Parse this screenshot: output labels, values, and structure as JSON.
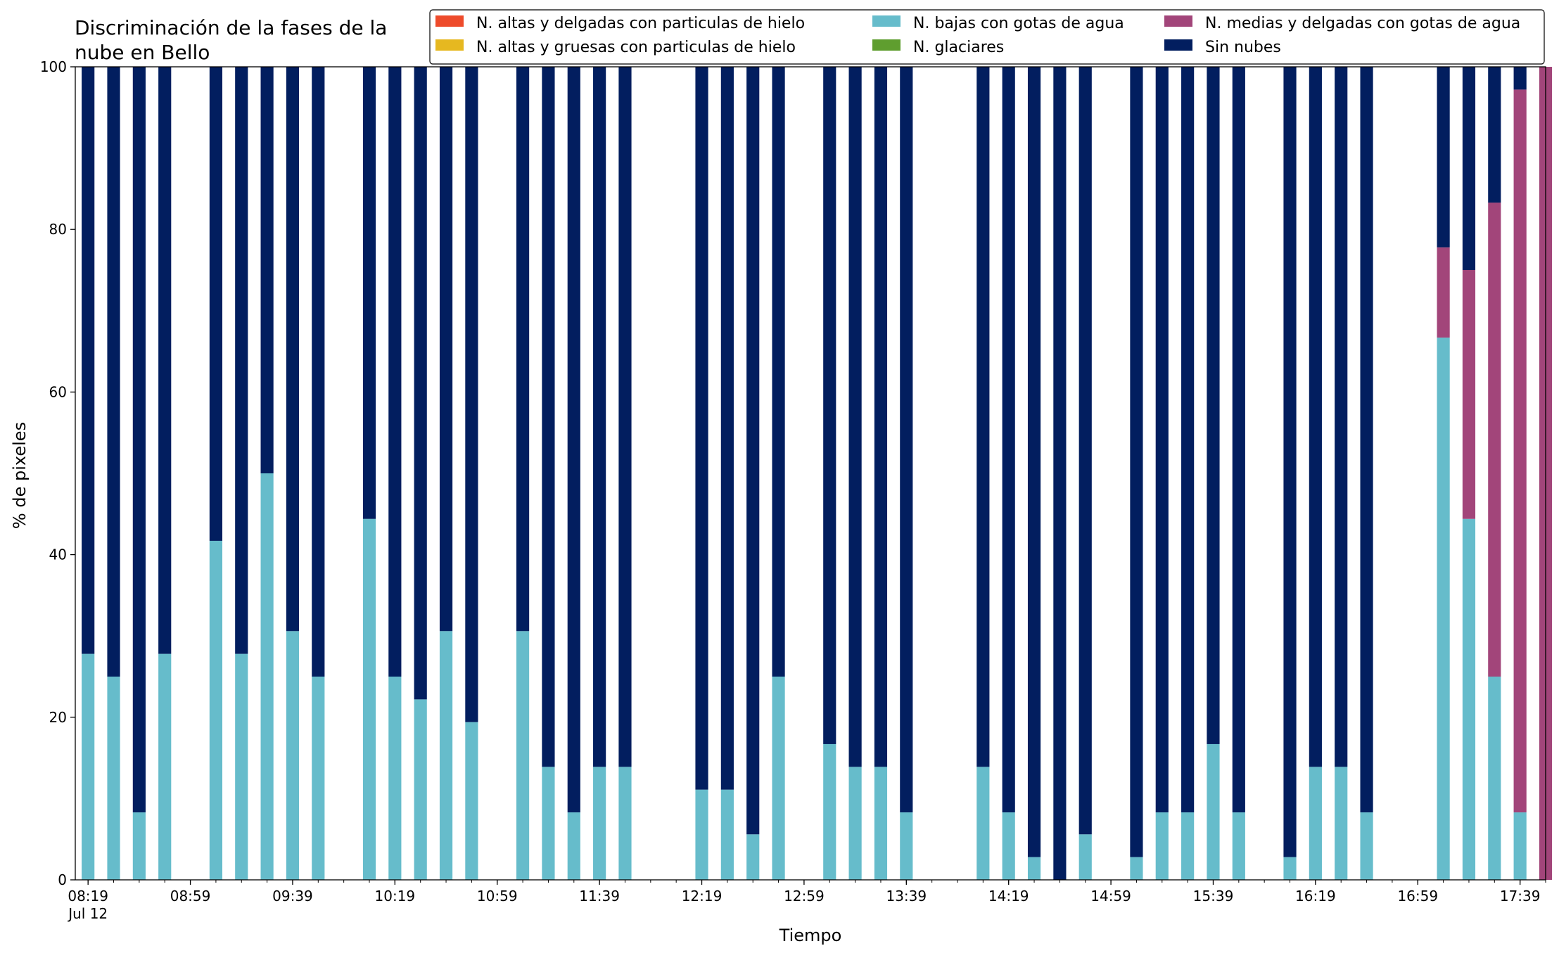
{
  "chart_data": {
    "type": "bar",
    "stacked": true,
    "title": "Discriminación de la fases de la\nnube en Bello",
    "xlabel": "Tiempo",
    "ylabel": "% de pixeles",
    "ylim": [
      0,
      100
    ],
    "yticks": [
      0,
      20,
      40,
      60,
      80,
      100
    ],
    "xlim_minutes": [
      494,
      1069
    ],
    "xticks": [
      {
        "min": 499,
        "label": "08:19",
        "sublabel": "Jul 12"
      },
      {
        "min": 539,
        "label": "08:59"
      },
      {
        "min": 579,
        "label": "09:39"
      },
      {
        "min": 619,
        "label": "10:19"
      },
      {
        "min": 659,
        "label": "10:59"
      },
      {
        "min": 699,
        "label": "11:39"
      },
      {
        "min": 739,
        "label": "12:19"
      },
      {
        "min": 779,
        "label": "12:59"
      },
      {
        "min": 819,
        "label": "13:39"
      },
      {
        "min": 859,
        "label": "14:19"
      },
      {
        "min": 899,
        "label": "14:59"
      },
      {
        "min": 939,
        "label": "15:39"
      },
      {
        "min": 979,
        "label": "16:19"
      },
      {
        "min": 1019,
        "label": "16:59"
      },
      {
        "min": 1059,
        "label": "17:39"
      }
    ],
    "minor_tick_step_minutes": 10,
    "bar_width_minutes": 5,
    "legend_position": "top-right",
    "series": [
      {
        "name": "N. altas y delgadas con particulas de hielo",
        "color": "#ee4b2b"
      },
      {
        "name": "N. altas y gruesas con particulas de hielo",
        "color": "#e6b820"
      },
      {
        "name": "N. bajas con gotas de agua",
        "color": "#66bccb"
      },
      {
        "name": "N. glaciares",
        "color": "#5f9e2f"
      },
      {
        "name": "N. medias y delgadas con gotas de agua",
        "color": "#a2457a"
      },
      {
        "name": "Sin nubes",
        "color": "#021e5f"
      }
    ],
    "bars": [
      {
        "t": 499,
        "bajas": 27.8,
        "medias": 0,
        "sin_nubes": 72.2
      },
      {
        "t": 509,
        "bajas": 25.0,
        "medias": 0,
        "sin_nubes": 75.0
      },
      {
        "t": 519,
        "bajas": 8.3,
        "medias": 0,
        "sin_nubes": 91.7
      },
      {
        "t": 529,
        "bajas": 27.8,
        "medias": 0,
        "sin_nubes": 72.2
      },
      {
        "t": 549,
        "bajas": 41.7,
        "medias": 0,
        "sin_nubes": 58.3
      },
      {
        "t": 559,
        "bajas": 27.8,
        "medias": 0,
        "sin_nubes": 72.2
      },
      {
        "t": 569,
        "bajas": 50.0,
        "medias": 0,
        "sin_nubes": 50.0
      },
      {
        "t": 579,
        "bajas": 30.6,
        "medias": 0,
        "sin_nubes": 69.4
      },
      {
        "t": 589,
        "bajas": 25.0,
        "medias": 0,
        "sin_nubes": 75.0
      },
      {
        "t": 609,
        "bajas": 44.4,
        "medias": 0,
        "sin_nubes": 55.6
      },
      {
        "t": 619,
        "bajas": 25.0,
        "medias": 0,
        "sin_nubes": 75.0
      },
      {
        "t": 629,
        "bajas": 22.2,
        "medias": 0,
        "sin_nubes": 77.8
      },
      {
        "t": 639,
        "bajas": 30.6,
        "medias": 0,
        "sin_nubes": 69.4
      },
      {
        "t": 649,
        "bajas": 19.4,
        "medias": 0,
        "sin_nubes": 80.6
      },
      {
        "t": 669,
        "bajas": 30.6,
        "medias": 0,
        "sin_nubes": 69.4
      },
      {
        "t": 679,
        "bajas": 13.9,
        "medias": 0,
        "sin_nubes": 86.1
      },
      {
        "t": 689,
        "bajas": 8.3,
        "medias": 0,
        "sin_nubes": 91.7
      },
      {
        "t": 699,
        "bajas": 13.9,
        "medias": 0,
        "sin_nubes": 86.1
      },
      {
        "t": 709,
        "bajas": 13.9,
        "medias": 0,
        "sin_nubes": 86.1
      },
      {
        "t": 739,
        "bajas": 11.1,
        "medias": 0,
        "sin_nubes": 88.9
      },
      {
        "t": 749,
        "bajas": 11.1,
        "medias": 0,
        "sin_nubes": 88.9
      },
      {
        "t": 759,
        "bajas": 5.6,
        "medias": 0,
        "sin_nubes": 94.4
      },
      {
        "t": 769,
        "bajas": 25.0,
        "medias": 0,
        "sin_nubes": 75.0
      },
      {
        "t": 789,
        "bajas": 16.7,
        "medias": 0,
        "sin_nubes": 83.3
      },
      {
        "t": 799,
        "bajas": 13.9,
        "medias": 0,
        "sin_nubes": 86.1
      },
      {
        "t": 809,
        "bajas": 13.9,
        "medias": 0,
        "sin_nubes": 86.1
      },
      {
        "t": 819,
        "bajas": 8.3,
        "medias": 0,
        "sin_nubes": 91.7
      },
      {
        "t": 849,
        "bajas": 13.9,
        "medias": 0,
        "sin_nubes": 86.1
      },
      {
        "t": 859,
        "bajas": 8.3,
        "medias": 0,
        "sin_nubes": 91.7
      },
      {
        "t": 869,
        "bajas": 2.8,
        "medias": 0,
        "sin_nubes": 97.2
      },
      {
        "t": 879,
        "bajas": 0.0,
        "medias": 0,
        "sin_nubes": 100.0
      },
      {
        "t": 889,
        "bajas": 5.6,
        "medias": 0,
        "sin_nubes": 94.4
      },
      {
        "t": 909,
        "bajas": 2.8,
        "medias": 0,
        "sin_nubes": 97.2
      },
      {
        "t": 919,
        "bajas": 8.3,
        "medias": 0,
        "sin_nubes": 91.7
      },
      {
        "t": 929,
        "bajas": 8.3,
        "medias": 0,
        "sin_nubes": 91.7
      },
      {
        "t": 939,
        "bajas": 16.7,
        "medias": 0,
        "sin_nubes": 83.3
      },
      {
        "t": 949,
        "bajas": 8.3,
        "medias": 0,
        "sin_nubes": 91.7
      },
      {
        "t": 969,
        "bajas": 2.8,
        "medias": 0,
        "sin_nubes": 97.2
      },
      {
        "t": 979,
        "bajas": 13.9,
        "medias": 0,
        "sin_nubes": 86.1
      },
      {
        "t": 989,
        "bajas": 13.9,
        "medias": 0,
        "sin_nubes": 86.1
      },
      {
        "t": 999,
        "bajas": 8.3,
        "medias": 0,
        "sin_nubes": 91.7
      },
      {
        "t": 1029,
        "bajas": 66.7,
        "medias": 11.1,
        "sin_nubes": 22.2
      },
      {
        "t": 1039,
        "bajas": 44.4,
        "medias": 30.6,
        "sin_nubes": 25.0
      },
      {
        "t": 1049,
        "bajas": 25.0,
        "medias": 58.3,
        "sin_nubes": 16.7
      },
      {
        "t": 1059,
        "bajas": 8.3,
        "medias": 88.9,
        "sin_nubes": 2.8
      },
      {
        "t": 1069,
        "bajas": 0.0,
        "medias": 100.0,
        "sin_nubes": 0.0
      }
    ]
  }
}
